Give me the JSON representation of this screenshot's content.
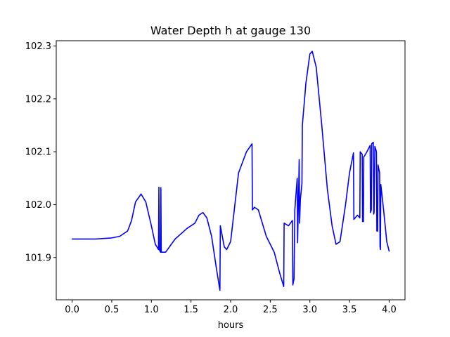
{
  "chart_data": {
    "type": "line",
    "title": "Water Depth h at gauge 130",
    "xlabel": "hours",
    "ylabel": "",
    "xlim": [
      -0.2,
      4.2
    ],
    "ylim": [
      101.82,
      102.31
    ],
    "xticks": [
      0.0,
      0.5,
      1.0,
      1.5,
      2.0,
      2.5,
      3.0,
      3.5,
      4.0
    ],
    "xtick_labels": [
      "0.0",
      "0.5",
      "1.0",
      "1.5",
      "2.0",
      "2.5",
      "3.0",
      "3.5",
      "4.0"
    ],
    "yticks": [
      101.9,
      102.0,
      102.1,
      102.2,
      102.3
    ],
    "ytick_labels": [
      "101.9",
      "102.0",
      "102.1",
      "102.2",
      "102.3"
    ],
    "grid": false,
    "series": [
      {
        "color": "#0000ff",
        "points": [
          [
            0.0,
            101.935
          ],
          [
            0.3,
            101.935
          ],
          [
            0.5,
            101.937
          ],
          [
            0.6,
            101.94
          ],
          [
            0.7,
            101.95
          ],
          [
            0.75,
            101.97
          ],
          [
            0.8,
            102.005
          ],
          [
            0.87,
            102.02
          ],
          [
            0.93,
            102.005
          ],
          [
            1.0,
            101.96
          ],
          [
            1.05,
            101.925
          ],
          [
            1.09,
            101.915
          ],
          [
            1.095,
            102.033
          ],
          [
            1.1,
            101.915
          ],
          [
            1.115,
            101.91
          ],
          [
            1.12,
            102.032
          ],
          [
            1.125,
            101.91
          ],
          [
            1.18,
            101.91
          ],
          [
            1.3,
            101.935
          ],
          [
            1.45,
            101.955
          ],
          [
            1.55,
            101.965
          ],
          [
            1.6,
            101.98
          ],
          [
            1.65,
            101.985
          ],
          [
            1.7,
            101.975
          ],
          [
            1.76,
            101.94
          ],
          [
            1.82,
            101.88
          ],
          [
            1.865,
            101.838
          ],
          [
            1.87,
            101.96
          ],
          [
            1.92,
            101.92
          ],
          [
            1.95,
            101.915
          ],
          [
            2.0,
            101.93
          ],
          [
            2.1,
            102.06
          ],
          [
            2.2,
            102.1
          ],
          [
            2.27,
            102.115
          ],
          [
            2.275,
            101.99
          ],
          [
            2.3,
            101.995
          ],
          [
            2.35,
            101.99
          ],
          [
            2.45,
            101.94
          ],
          [
            2.55,
            101.91
          ],
          [
            2.62,
            101.87
          ],
          [
            2.67,
            101.845
          ],
          [
            2.675,
            101.965
          ],
          [
            2.73,
            101.96
          ],
          [
            2.78,
            101.97
          ],
          [
            2.785,
            101.848
          ],
          [
            2.8,
            101.86
          ],
          [
            2.81,
            101.99
          ],
          [
            2.84,
            102.05
          ],
          [
            2.845,
            101.928
          ],
          [
            2.86,
            102.04
          ],
          [
            2.865,
            102.085
          ],
          [
            2.87,
            101.965
          ],
          [
            2.88,
            102.01
          ],
          [
            2.9,
            102.04
          ],
          [
            2.905,
            102.15
          ],
          [
            2.95,
            102.23
          ],
          [
            3.0,
            102.285
          ],
          [
            3.03,
            102.29
          ],
          [
            3.08,
            102.26
          ],
          [
            3.15,
            102.15
          ],
          [
            3.22,
            102.03
          ],
          [
            3.28,
            101.96
          ],
          [
            3.33,
            101.925
          ],
          [
            3.38,
            101.93
          ],
          [
            3.45,
            102.0
          ],
          [
            3.5,
            102.06
          ],
          [
            3.55,
            102.098
          ],
          [
            3.555,
            101.972
          ],
          [
            3.6,
            101.98
          ],
          [
            3.63,
            101.975
          ],
          [
            3.635,
            102.1
          ],
          [
            3.66,
            102.095
          ],
          [
            3.665,
            101.968
          ],
          [
            3.675,
            101.968
          ],
          [
            3.68,
            102.09
          ],
          [
            3.72,
            102.1
          ],
          [
            3.76,
            102.112
          ],
          [
            3.765,
            101.985
          ],
          [
            3.775,
            101.99
          ],
          [
            3.78,
            102.115
          ],
          [
            3.8,
            102.118
          ],
          [
            3.805,
            101.982
          ],
          [
            3.81,
            101.985
          ],
          [
            3.82,
            102.11
          ],
          [
            3.84,
            102.1
          ],
          [
            3.845,
            101.95
          ],
          [
            3.855,
            101.95
          ],
          [
            3.86,
            102.075
          ],
          [
            3.88,
            102.06
          ],
          [
            3.885,
            101.92
          ],
          [
            3.89,
            101.915
          ],
          [
            3.895,
            102.038
          ],
          [
            3.93,
            101.99
          ],
          [
            3.97,
            101.93
          ],
          [
            4.0,
            101.912
          ]
        ]
      }
    ]
  }
}
